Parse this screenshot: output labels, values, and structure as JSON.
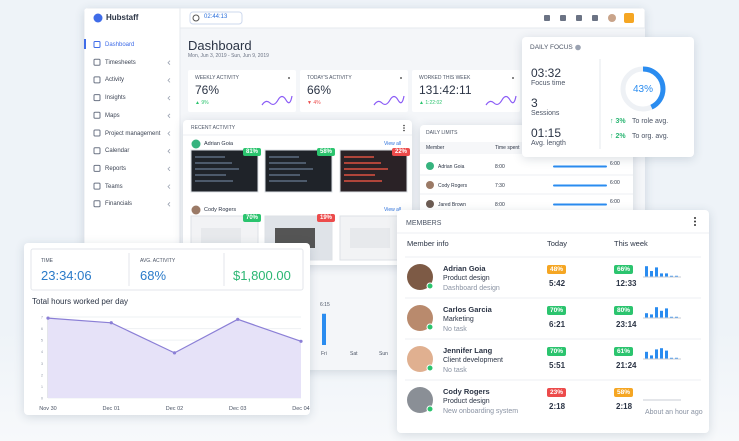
{
  "app": {
    "logo": "Hubstaff",
    "timer": "02:44:13",
    "nav": [
      "Dashboard",
      "Timesheets",
      "Activity",
      "Insights",
      "Maps",
      "Project management",
      "Calendar",
      "Reports",
      "Teams",
      "Financials"
    ]
  },
  "levels": {
    "high": "#2bc46e",
    "medium": "#f5a623",
    "low": "#ec4b4b"
  },
  "dashboard": {
    "title": "Dashboard",
    "date_range": "Mon, Jun 3, 2019 - Sun, Jun 9, 2019",
    "stats": [
      {
        "label": "WEEKLY ACTIVITY",
        "value": "76%",
        "change": "▲ 9%",
        "trend": "high"
      },
      {
        "label": "TODAY'S ACTIVITY",
        "value": "66%",
        "change": "▼ 4%",
        "trend": "low"
      },
      {
        "label": "WORKED THIS WEEK",
        "value": "131:42:11",
        "change": "▲ 1:22:02",
        "trend": "high"
      }
    ]
  },
  "recent_activity": {
    "title": "RECENT ACTIVITY",
    "members": [
      {
        "name": "Adrian Goia",
        "view_all": "View all",
        "shots": [
          {
            "activity": "81%",
            "level": "high"
          },
          {
            "activity": "58%",
            "level": "high"
          },
          {
            "activity": "22%",
            "level": "low"
          }
        ]
      },
      {
        "name": "Cody Rogers",
        "view_all": "View all",
        "shots": [
          {
            "activity": "70%",
            "level": "high"
          },
          {
            "activity": "19%",
            "level": "low"
          }
        ]
      }
    ]
  },
  "daily_limits": {
    "title": "DAILY LIMITS",
    "columns": [
      "Member",
      "Time spent"
    ],
    "rows": [
      {
        "name": "Adrian Goia",
        "spent": "8:00",
        "limit": "6:00"
      },
      {
        "name": "Cody Rogers",
        "spent": "7:30",
        "limit": "6:00"
      },
      {
        "name": "Jared Brown",
        "spent": "8:00",
        "limit": "6:00"
      }
    ]
  },
  "daily_focus": {
    "title": "DAILY FOCUS",
    "focus_time": "03:32",
    "focus_time_label": "Focus time",
    "sessions": "3",
    "sessions_label": "Sessions",
    "avg_length": "01:15",
    "avg_length_label": "Avg. length",
    "percent": 43,
    "percent_label": "43%",
    "color": "#2a8cf0",
    "comparisons": [
      {
        "change": "↑ 3%",
        "text": "To role avg."
      },
      {
        "change": "↑ 2%",
        "text": "To org. avg."
      }
    ]
  },
  "summary": {
    "time_label": "TIME",
    "time": "23:34:06",
    "avg_label": "AVG. ACTIVITY",
    "avg": "68%",
    "amount": "$1,800.00"
  },
  "week_chart": {
    "label": "6:15",
    "days": [
      "Fri",
      "Sat",
      "Sun"
    ],
    "values": [
      6.25,
      0,
      0
    ],
    "ylim": [
      0,
      8
    ],
    "color": "#2a8cf0"
  },
  "chart_data": {
    "type": "line",
    "title": "Total hours worked per day",
    "categories": [
      "Nov 30",
      "Dec 01",
      "Dec 02",
      "Dec 03",
      "Dec 04"
    ],
    "values": [
      6.9,
      6.5,
      3.9,
      6.8,
      4.9
    ],
    "ylim": [
      0,
      7
    ],
    "yticks": [
      0,
      1,
      2,
      3,
      4,
      5,
      6,
      7
    ],
    "color": "#8b7fd6",
    "fill": "#e6e2f8",
    "grid": true
  },
  "members": {
    "title": "MEMBERS",
    "columns": [
      "Member info",
      "Today",
      "This week"
    ],
    "bar_color": "#2a8cf0",
    "rows": [
      {
        "name": "Adrian Goia",
        "role": "Product design",
        "task": "Dashboard design",
        "today_activity": "48%",
        "today_level": "medium",
        "today_time": "5:42",
        "week_activity": "66%",
        "week_level": "high",
        "week_time": "12:33",
        "week_bars": [
          9,
          5,
          8,
          3,
          3,
          1,
          1
        ]
      },
      {
        "name": "Carlos Garcia",
        "role": "Marketing",
        "task": "No task",
        "today_activity": "70%",
        "today_level": "high",
        "today_time": "6:21",
        "week_activity": "80%",
        "week_level": "high",
        "week_time": "23:14",
        "week_bars": [
          4,
          3,
          9,
          6,
          8,
          1,
          1
        ]
      },
      {
        "name": "Jennifer Lang",
        "role": "Client development",
        "task": "No task",
        "today_activity": "70%",
        "today_level": "high",
        "today_time": "5:51",
        "week_activity": "61%",
        "week_level": "high",
        "week_time": "21:24",
        "week_bars": [
          6,
          3,
          8,
          9,
          7,
          1,
          1
        ]
      },
      {
        "name": "Cody Rogers",
        "role": "Product design",
        "task": "New onboarding system",
        "today_activity": "23%",
        "today_level": "low",
        "today_time": "2:18",
        "week_activity": "58%",
        "week_level": "medium",
        "week_time": "2:18",
        "last_seen": "About an hour ago"
      }
    ]
  }
}
